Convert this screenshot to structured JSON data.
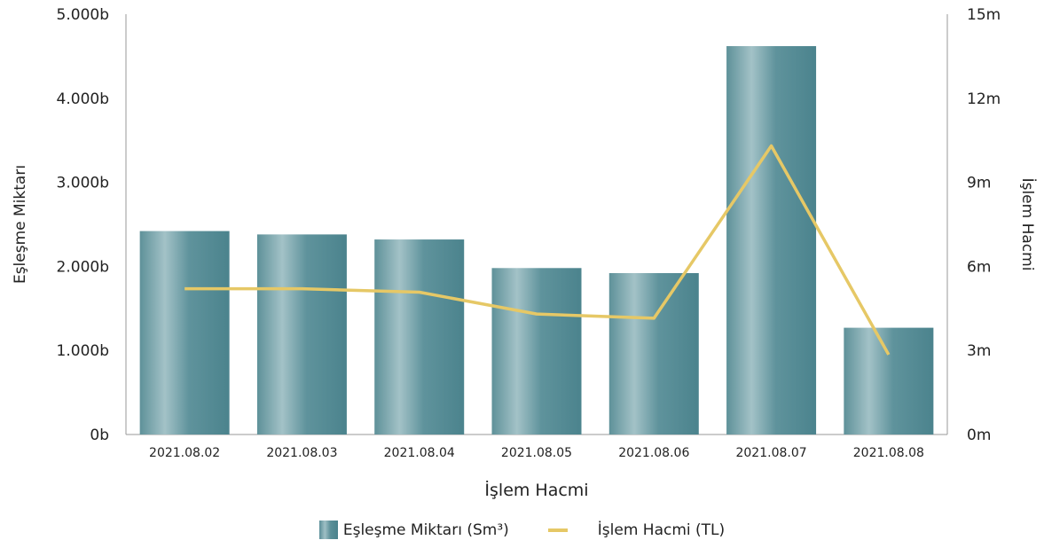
{
  "chart_data": {
    "type": "bar",
    "categories": [
      "2021.08.02",
      "2021.08.03",
      "2021.08.04",
      "2021.08.05",
      "2021.08.06",
      "2021.08.07",
      "2021.08.08"
    ],
    "series": [
      {
        "name": "Eşleşme Miktarı (Sm³)",
        "type": "bar",
        "axis": "left",
        "color": "#5b8f98",
        "values": [
          2420,
          2380,
          2320,
          1980,
          1920,
          4620,
          1270
        ]
      },
      {
        "name": "İşlem Hacmi (TL)",
        "type": "line",
        "axis": "right",
        "color": "#e6c866",
        "values": [
          5.2,
          5.2,
          5.08,
          4.3,
          4.15,
          10.3,
          2.85
        ]
      }
    ],
    "y_left": {
      "label": "Eşleşme Miktarı",
      "ylim": [
        0,
        5000
      ],
      "ticks": [
        "0b",
        "1.000b",
        "2.000b",
        "3.000b",
        "4.000b",
        "5.000b"
      ]
    },
    "y_right": {
      "label": "İşlem Hacmi",
      "ylim": [
        0,
        15
      ],
      "ticks": [
        "0m",
        "3m",
        "6m",
        "9m",
        "12m",
        "15m"
      ]
    },
    "xlabel": "İşlem Hacmi",
    "legend_position": "bottom-center"
  },
  "legend": {
    "bar_label": "Eşleşme Miktarı (Sm³)",
    "line_label": "İşlem Hacmi (TL)"
  }
}
